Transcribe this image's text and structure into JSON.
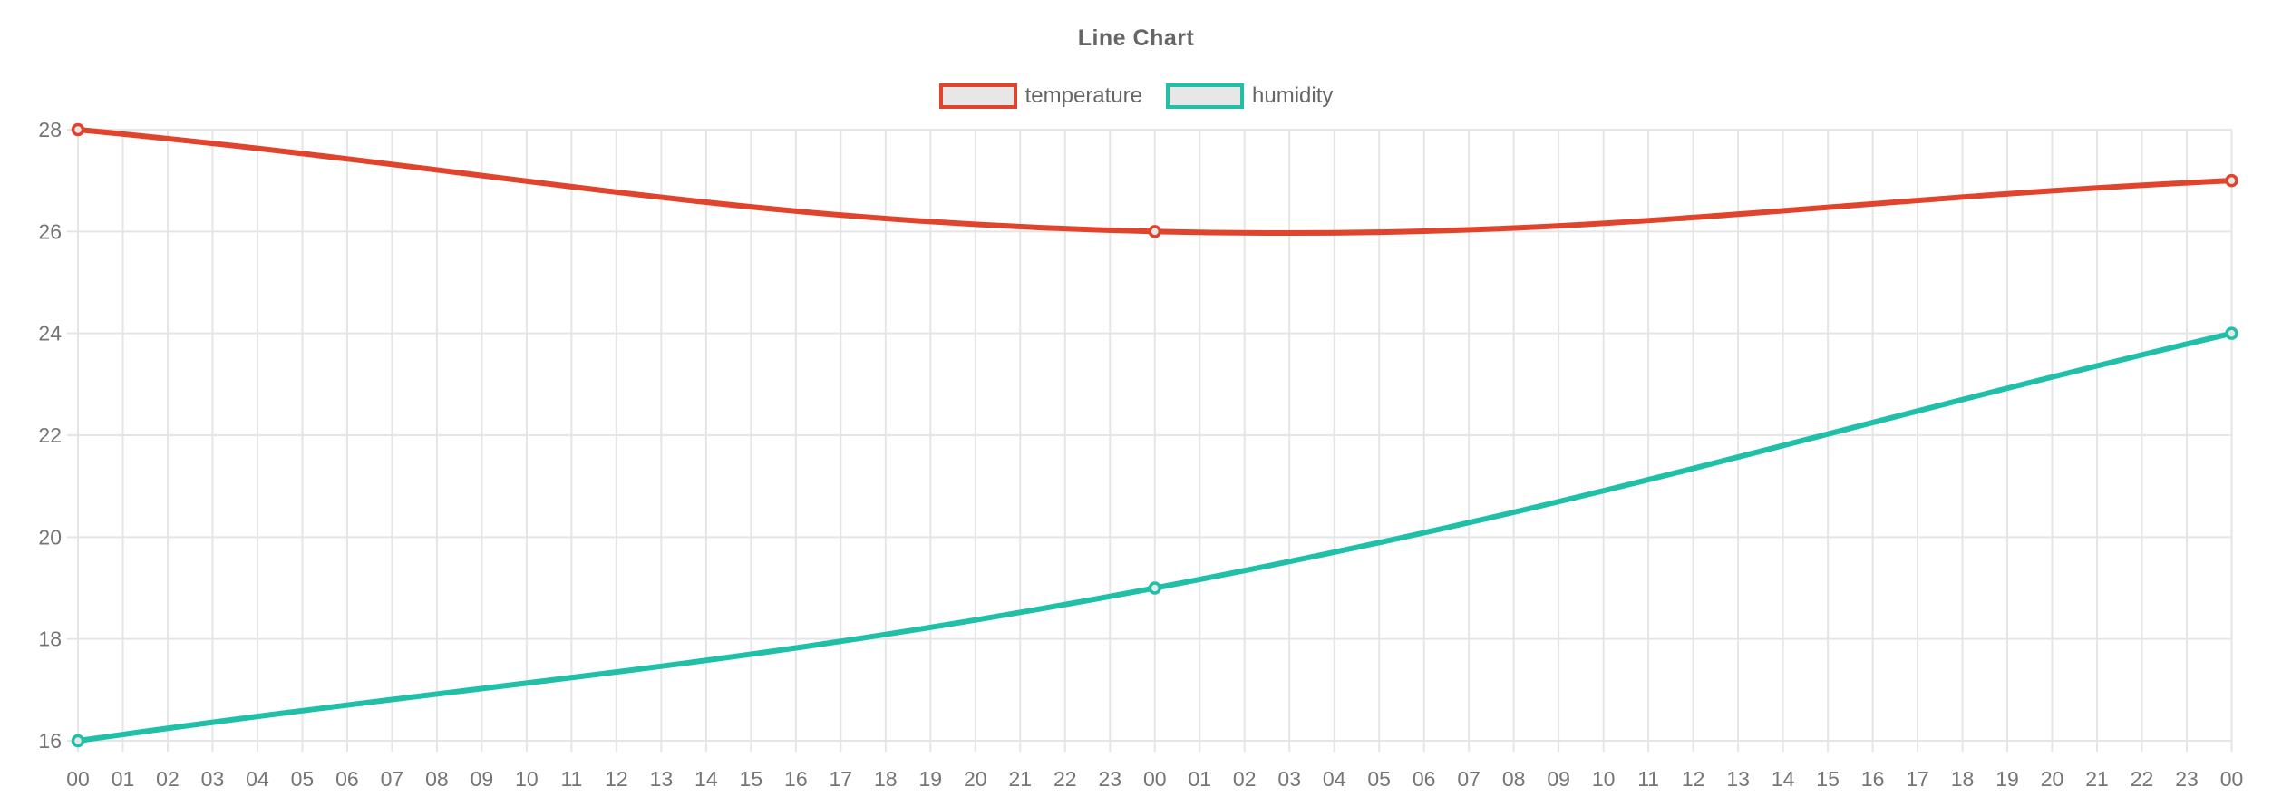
{
  "chart_data": {
    "type": "line",
    "title": "Line Chart",
    "legend_position": "top",
    "grid": true,
    "x_labels": [
      "00",
      "01",
      "02",
      "03",
      "04",
      "05",
      "06",
      "07",
      "08",
      "09",
      "10",
      "11",
      "12",
      "13",
      "14",
      "15",
      "16",
      "17",
      "18",
      "19",
      "20",
      "21",
      "22",
      "23",
      "00",
      "01",
      "02",
      "03",
      "04",
      "05",
      "06",
      "07",
      "08",
      "09",
      "10",
      "11",
      "12",
      "13",
      "14",
      "15",
      "16",
      "17",
      "18",
      "19",
      "20",
      "21",
      "22",
      "23",
      "00"
    ],
    "y_ticks": [
      16,
      18,
      20,
      22,
      24,
      26,
      28
    ],
    "ylim": [
      16,
      28
    ],
    "line_tension": 0.4,
    "marker": "open-circle",
    "series": [
      {
        "name": "temperature",
        "color": "#e0442c",
        "fill_color": "#e7e7e7",
        "points": [
          {
            "x_index": 0,
            "x_label": "00",
            "y": 28
          },
          {
            "x_index": 24,
            "x_label": "00",
            "y": 26
          },
          {
            "x_index": 48,
            "x_label": "00",
            "y": 27
          }
        ]
      },
      {
        "name": "humidity",
        "color": "#1fbfa8",
        "fill_color": "#e7e7e7",
        "points": [
          {
            "x_index": 0,
            "x_label": "00",
            "y": 16
          },
          {
            "x_index": 24,
            "x_label": "00",
            "y": 19
          },
          {
            "x_index": 48,
            "x_label": "00",
            "y": 24
          }
        ]
      }
    ],
    "style": {
      "grid_color": "#e5e5e5",
      "tick_label_color": "#757575",
      "title_color": "#666666",
      "legend_text_color": "#666666",
      "background": "#ffffff"
    }
  }
}
